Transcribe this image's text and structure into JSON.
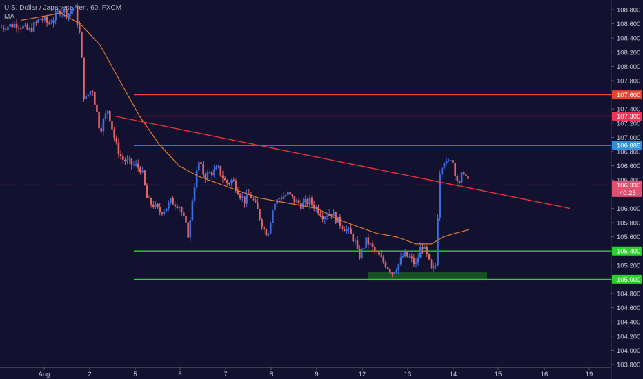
{
  "legend": {
    "symbol": "U.S. Dollar / Japanese Yen, 60, FXCM",
    "indicator": "MA"
  },
  "colors": {
    "background": "#131130",
    "up": "#3d6ee0",
    "down": "#e06464",
    "ma": "#e07b30",
    "trendline": "#e8303a",
    "resistance_top": "#e8452c",
    "resistance_mid": "#ee3355",
    "blue_level": "#2f8fd8",
    "support": "#2cd02c",
    "current_price": "#e05070",
    "support_zone": "#1a5a22"
  },
  "chart_data": {
    "type": "candlestick",
    "title": "U.S. Dollar / Japanese Yen, 60, FXCM",
    "yaxis": {
      "range": [
        103.7,
        109.0
      ],
      "ticks": [
        "108.800",
        "108.600",
        "108.400",
        "108.200",
        "108.000",
        "107.800",
        "107.600",
        "107.400",
        "107.200",
        "107.000",
        "106.800",
        "106.600",
        "106.400",
        "106.200",
        "106.000",
        "105.800",
        "105.600",
        "105.400",
        "105.200",
        "105.000",
        "104.800",
        "104.600",
        "104.400",
        "104.200",
        "104.000",
        "103.800"
      ]
    },
    "xaxis": {
      "ticks": [
        "Aug",
        "2",
        "5",
        "6",
        "7",
        "8",
        "9",
        "12",
        "13",
        "14",
        "15",
        "16",
        "19"
      ]
    },
    "horizontal_levels": [
      {
        "name": "resistance-107600",
        "value": 107.6,
        "label": "107.600",
        "color": "#e8452c"
      },
      {
        "name": "resistance-107300",
        "value": 107.3,
        "label": "107.300",
        "color": "#ee3355"
      },
      {
        "name": "level-106885",
        "value": 106.885,
        "label": "106.885",
        "color": "#2f8fd8"
      },
      {
        "name": "support-105400",
        "value": 105.4,
        "label": "105.400",
        "color": "#2cd02c"
      },
      {
        "name": "support-105000",
        "value": 105.0,
        "label": "105.000",
        "color": "#2cd02c"
      }
    ],
    "current_price": {
      "value": 106.33,
      "label": "106.330",
      "countdown": "40:25"
    },
    "trendline": {
      "start": {
        "x": "Aug 2",
        "y": 107.3
      },
      "end": {
        "x": "Aug 16",
        "y": 106.0
      }
    },
    "support_zone": {
      "y_low": 104.97,
      "y_high": 105.08
    },
    "ohlc_path": [
      [
        0.0,
        108.55
      ],
      [
        0.4,
        108.6
      ],
      [
        0.7,
        108.5
      ],
      [
        1.0,
        108.68
      ],
      [
        1.2,
        108.6
      ],
      [
        1.5,
        108.8
      ],
      [
        1.7,
        108.75
      ],
      [
        1.85,
        108.85
      ],
      [
        2.0,
        108.4
      ],
      [
        2.1,
        107.5
      ],
      [
        2.3,
        107.7
      ],
      [
        2.5,
        107.1
      ],
      [
        2.7,
        107.4
      ],
      [
        2.9,
        106.9
      ],
      [
        3.05,
        106.7
      ],
      [
        3.2,
        106.65
      ],
      [
        3.4,
        106.6
      ],
      [
        3.55,
        106.55
      ],
      [
        3.7,
        106.1
      ],
      [
        3.85,
        106.05
      ],
      [
        4.0,
        105.95
      ],
      [
        4.15,
        106.0
      ],
      [
        4.3,
        106.1
      ],
      [
        4.5,
        106.05
      ],
      [
        4.65,
        105.8
      ],
      [
        4.75,
        105.6
      ],
      [
        4.85,
        106.2
      ],
      [
        5.0,
        106.65
      ],
      [
        5.15,
        106.45
      ],
      [
        5.3,
        106.5
      ],
      [
        5.5,
        106.55
      ],
      [
        5.7,
        106.35
      ],
      [
        5.85,
        106.4
      ],
      [
        6.0,
        106.25
      ],
      [
        6.15,
        106.1
      ],
      [
        6.3,
        106.2
      ],
      [
        6.5,
        105.95
      ],
      [
        6.65,
        105.7
      ],
      [
        6.75,
        105.65
      ],
      [
        6.9,
        106.05
      ],
      [
        7.05,
        106.15
      ],
      [
        7.25,
        106.2
      ],
      [
        7.45,
        106.1
      ],
      [
        7.6,
        106.05
      ],
      [
        7.8,
        106.1
      ],
      [
        8.0,
        106.0
      ],
      [
        8.15,
        105.9
      ],
      [
        8.35,
        105.95
      ],
      [
        8.55,
        105.8
      ],
      [
        8.75,
        105.7
      ],
      [
        8.95,
        105.55
      ],
      [
        9.05,
        105.3
      ],
      [
        9.25,
        105.55
      ],
      [
        9.45,
        105.4
      ],
      [
        9.6,
        105.3
      ],
      [
        9.75,
        105.2
      ],
      [
        9.9,
        105.1
      ],
      [
        10.05,
        105.2
      ],
      [
        10.2,
        105.35
      ],
      [
        10.35,
        105.3
      ],
      [
        10.5,
        105.2
      ],
      [
        10.65,
        105.5
      ],
      [
        10.8,
        105.3
      ],
      [
        10.9,
        105.1
      ],
      [
        11.0,
        105.2
      ],
      [
        11.1,
        106.5
      ],
      [
        11.2,
        106.7
      ],
      [
        11.3,
        106.6
      ],
      [
        11.4,
        106.75
      ],
      [
        11.5,
        106.5
      ],
      [
        11.6,
        106.3
      ],
      [
        11.7,
        106.55
      ],
      [
        11.8,
        106.4
      ],
      [
        11.85,
        106.33
      ]
    ],
    "ma_path": [
      [
        0.5,
        108.65
      ],
      [
        1.0,
        108.7
      ],
      [
        1.5,
        108.75
      ],
      [
        2.0,
        108.6
      ],
      [
        2.5,
        108.3
      ],
      [
        3.0,
        107.8
      ],
      [
        3.5,
        107.3
      ],
      [
        4.0,
        106.9
      ],
      [
        4.5,
        106.6
      ],
      [
        5.0,
        106.45
      ],
      [
        5.5,
        106.35
      ],
      [
        6.0,
        106.25
      ],
      [
        6.5,
        106.15
      ],
      [
        7.0,
        106.1
      ],
      [
        7.5,
        106.05
      ],
      [
        8.0,
        106.0
      ],
      [
        8.5,
        105.85
      ],
      [
        9.0,
        105.75
      ],
      [
        9.5,
        105.65
      ],
      [
        10.0,
        105.6
      ],
      [
        10.5,
        105.5
      ],
      [
        10.9,
        105.5
      ],
      [
        11.2,
        105.6
      ],
      [
        11.5,
        105.65
      ],
      [
        11.85,
        105.7
      ]
    ]
  }
}
